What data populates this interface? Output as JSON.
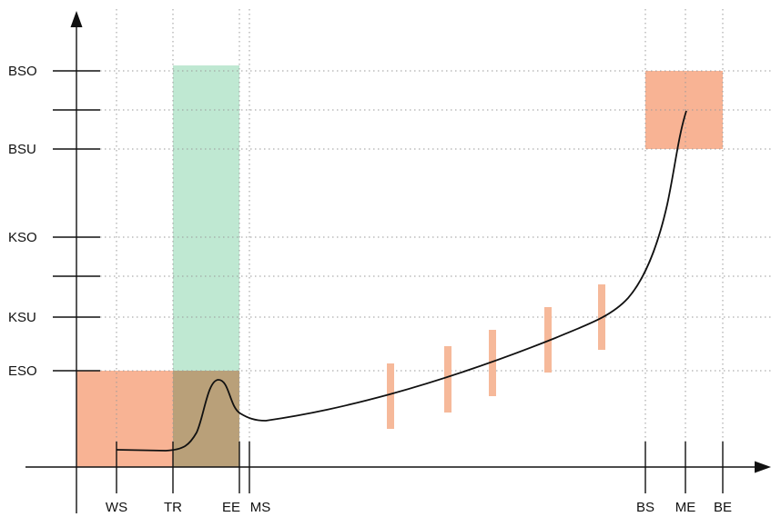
{
  "y_labels": {
    "bso": "BSO",
    "bsu": "BSU",
    "kso": "KSO",
    "ksu": "KSU",
    "eso": "ESO"
  },
  "x_labels": {
    "ws": "WS",
    "tr": "TR",
    "ee": "EE",
    "ms": "MS",
    "bs": "BS",
    "me": "ME",
    "be": "BE"
  },
  "colors": {
    "green_region": "#bfe8d2",
    "orange_region": "#f8b394",
    "overlap_region": "#b9a079",
    "error_bar": "#f6b99a",
    "curve": "#111111",
    "grid": "#9a9a9a"
  }
}
